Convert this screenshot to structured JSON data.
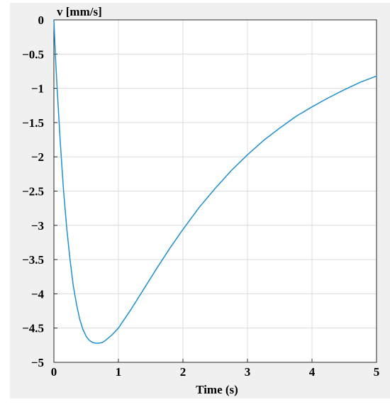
{
  "chart_data": {
    "type": "line",
    "title": "",
    "xlabel": "Time (s)",
    "ylabel": "v [mm/s]",
    "xlim": [
      0,
      5
    ],
    "ylim": [
      -5,
      0
    ],
    "grid": true,
    "xticks": [
      0,
      1,
      2,
      3,
      4,
      5
    ],
    "xtick_labels": [
      "0",
      "1",
      "2",
      "3",
      "4",
      "5"
    ],
    "yticks": [
      0,
      -0.5,
      -1,
      -1.5,
      -2,
      -2.5,
      -3,
      -3.5,
      -4,
      -4.5,
      -5
    ],
    "ytick_labels": [
      "0",
      "−0.5",
      "−1",
      "−1.5",
      "−2",
      "−2.5",
      "−3",
      "−3.5",
      "−4",
      "−4.5",
      "−5"
    ],
    "colors": {
      "background": "#f0f0f0",
      "plot_area": "#ffffff",
      "grid": "#dcdcdc",
      "axes": "#262626",
      "line": "#1f8fcf"
    },
    "series": [
      {
        "x": [
          0,
          0.025,
          0.05,
          0.1,
          0.15,
          0.2,
          0.25,
          0.3,
          0.35,
          0.4,
          0.45,
          0.5,
          0.55,
          0.6,
          0.65,
          0.7,
          0.75,
          0.8,
          0.85,
          0.9,
          0.95,
          1.0,
          1.2,
          1.4,
          1.6,
          1.8,
          2.0,
          2.25,
          2.5,
          2.75,
          3.0,
          3.25,
          3.5,
          3.75,
          4.0,
          4.25,
          4.5,
          4.75,
          5.0
        ],
        "values": [
          0,
          -0.55,
          -1.0,
          -1.8,
          -2.5,
          -3.05,
          -3.5,
          -3.88,
          -4.15,
          -4.37,
          -4.52,
          -4.62,
          -4.68,
          -4.71,
          -4.72,
          -4.72,
          -4.71,
          -4.68,
          -4.64,
          -4.6,
          -4.55,
          -4.5,
          -4.22,
          -3.92,
          -3.62,
          -3.33,
          -3.06,
          -2.74,
          -2.46,
          -2.2,
          -1.97,
          -1.76,
          -1.58,
          -1.41,
          -1.27,
          -1.14,
          -1.02,
          -0.91,
          -0.82
        ]
      }
    ]
  }
}
